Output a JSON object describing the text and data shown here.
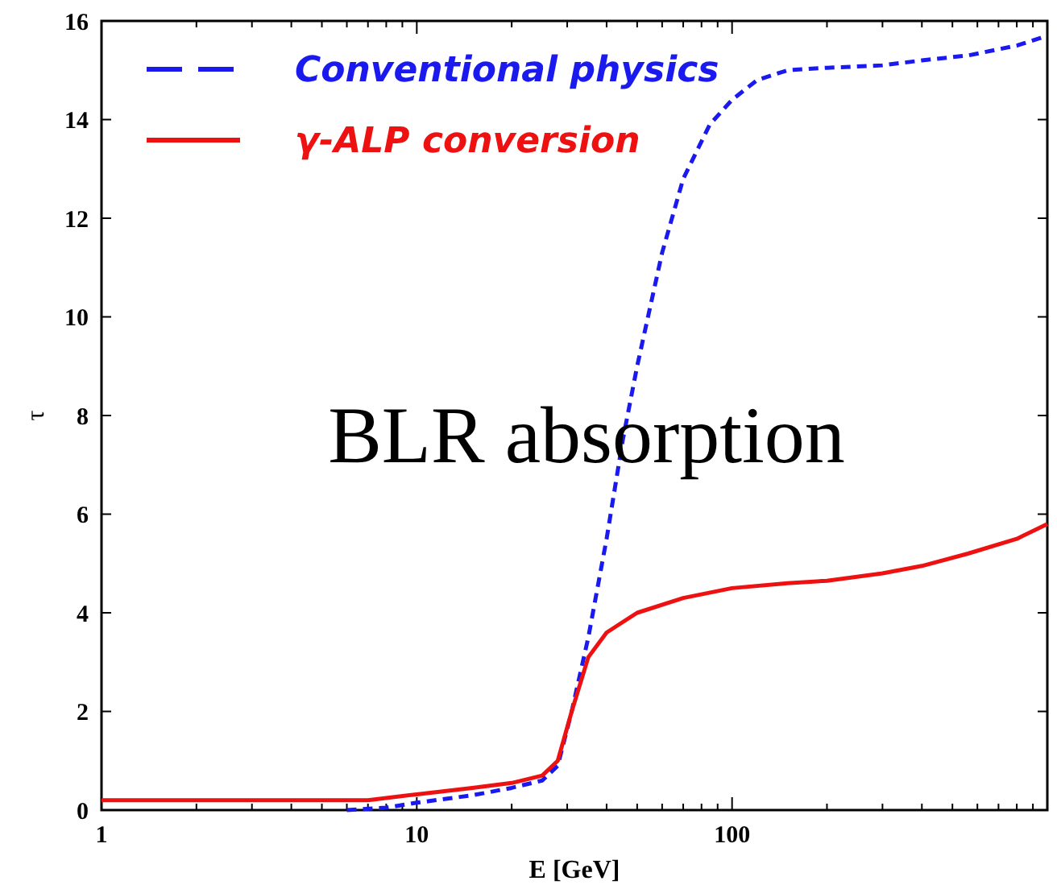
{
  "chart_data": {
    "type": "line",
    "xlabel": "E [GeV]",
    "ylabel": "τ",
    "log": "x",
    "xlim": [
      1,
      1000
    ],
    "xticks": [
      1,
      10,
      100
    ],
    "ylim": [
      0,
      16
    ],
    "yticks": [
      0,
      2,
      4,
      6,
      8,
      10,
      12,
      14,
      16
    ],
    "grid": false,
    "legend": "top left",
    "annotations": [
      "BLR absorption"
    ],
    "series": [
      {
        "name": "Conventional physics",
        "color": "#1a1aee",
        "line_style": "dashed",
        "x": [
          6,
          8,
          10,
          15,
          20,
          25,
          28,
          31,
          35,
          40,
          45,
          50,
          60,
          70,
          85,
          100,
          120,
          150,
          200,
          300,
          400,
          560,
          800,
          1000
        ],
        "values": [
          0,
          0.05,
          0.15,
          0.3,
          0.45,
          0.6,
          0.9,
          2,
          3.5,
          5.5,
          7.5,
          9,
          11.3,
          12.8,
          13.9,
          14.4,
          14.8,
          15,
          15.05,
          15.1,
          15.2,
          15.3,
          15.5,
          15.7
        ]
      },
      {
        "name": "γ-ALP conversion",
        "color": "#ee1111",
        "line_style": "solid",
        "x": [
          1,
          2,
          4,
          7,
          10,
          15,
          20,
          25,
          28,
          31,
          35,
          40,
          50,
          70,
          100,
          150,
          200,
          300,
          400,
          560,
          800,
          1000
        ],
        "values": [
          0.2,
          0.2,
          0.2,
          0.2,
          0.32,
          0.45,
          0.55,
          0.7,
          1,
          2,
          3.1,
          3.6,
          4.0,
          4.3,
          4.5,
          4.6,
          4.65,
          4.8,
          4.95,
          5.2,
          5.5,
          5.8
        ]
      }
    ]
  }
}
